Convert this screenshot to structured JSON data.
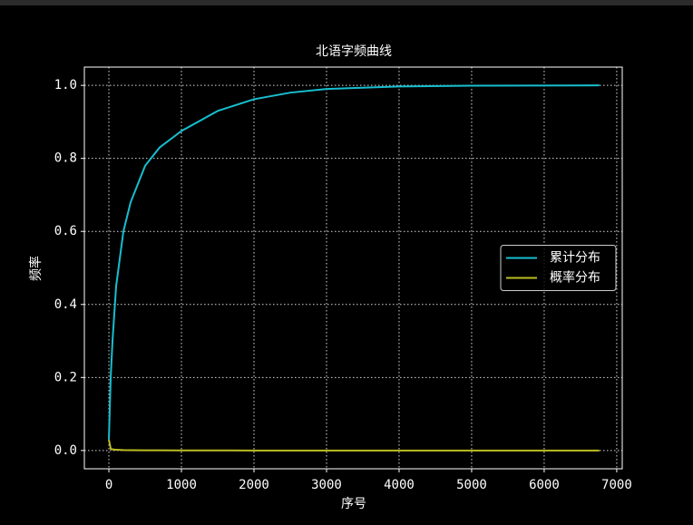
{
  "chart_data": {
    "type": "line",
    "title": "北语字频曲线",
    "x_label": "序号",
    "y_label": "频率",
    "x": [
      0,
      25,
      50,
      100,
      200,
      300,
      500,
      700,
      1000,
      1500,
      2000,
      2500,
      3000,
      4000,
      5000,
      6760
    ],
    "series": [
      {
        "name": "累计分布",
        "color": "#17becf",
        "values": [
          0.03,
          0.2,
          0.3,
          0.45,
          0.6,
          0.68,
          0.78,
          0.83,
          0.875,
          0.93,
          0.962,
          0.98,
          0.99,
          0.997,
          0.999,
          1.0
        ]
      },
      {
        "name": "概率分布",
        "color": "#bcbd22",
        "values": [
          0.03,
          0.005,
          0.003,
          0.002,
          0.0012,
          0.001,
          0.0007,
          0.0005,
          0.0004,
          0.0002,
          0.0001,
          0.0001,
          0,
          0,
          0,
          0
        ]
      }
    ],
    "xlim": [
      -338,
      7076
    ],
    "ylim": [
      -0.05,
      1.05
    ],
    "xticks": [
      0,
      1000,
      2000,
      3000,
      4000,
      5000,
      6000,
      7000
    ],
    "yticks": [
      {
        "value": 0,
        "label": "0.0"
      },
      0.2,
      0.4,
      0.6,
      0.8,
      {
        "value": 1,
        "label": "1.0"
      }
    ],
    "grid": true,
    "legend": "center right"
  }
}
